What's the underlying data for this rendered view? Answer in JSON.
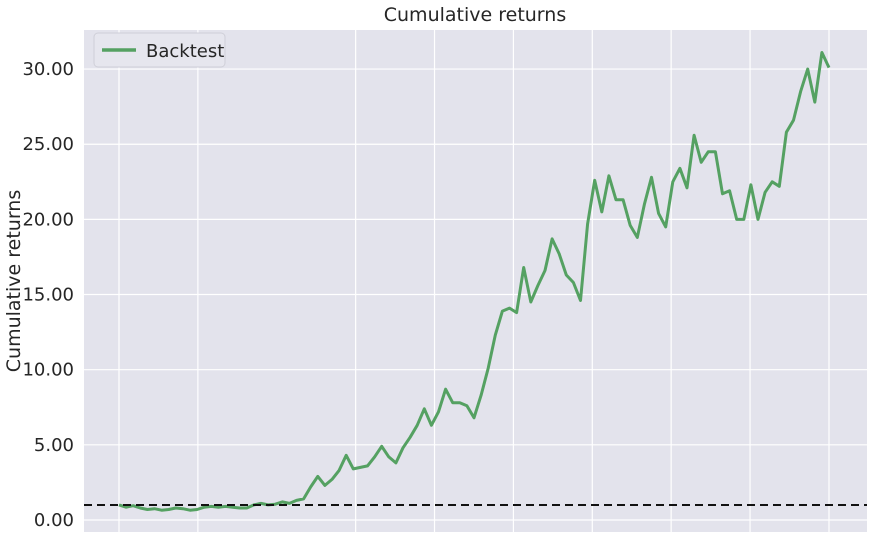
{
  "chart_data": {
    "type": "line",
    "title": "Cumulative returns",
    "xlabel": "",
    "ylabel": "Cumulative returns",
    "ylim": [
      -0.8,
      32.6
    ],
    "yticks": [
      0,
      5,
      10,
      15,
      20,
      25,
      30
    ],
    "ytick_labels": [
      "0.00",
      "5.00",
      "10.00",
      "15.00",
      "20.00",
      "25.00",
      "30.00"
    ],
    "xlim": [
      0,
      100
    ],
    "xgrid": [
      0,
      11.11,
      33.33,
      44.44,
      55.55,
      66.66,
      77.77,
      88.88,
      100
    ],
    "x_tick_labels_visible": false,
    "grid": true,
    "background": "#e3e3ec",
    "legend": {
      "location": "top-left",
      "entries": [
        "Backtest"
      ]
    },
    "reference_line": {
      "y": 1.0,
      "style": "dashed",
      "color": "#111111"
    },
    "series": [
      {
        "name": "Backtest",
        "color": "#55a162",
        "x": [
          0,
          1,
          2,
          3,
          4,
          5,
          6,
          7,
          8,
          9,
          10,
          11,
          12,
          13,
          14,
          15,
          16,
          17,
          18,
          19,
          20,
          21,
          22,
          23,
          24,
          25,
          26,
          27,
          28,
          29,
          30,
          31,
          32,
          33,
          34,
          35,
          36,
          37,
          38,
          39,
          40,
          41,
          42,
          43,
          44,
          45,
          46,
          47,
          48,
          49,
          50,
          51,
          52,
          53,
          54,
          55,
          56,
          57,
          58,
          59,
          60,
          61,
          62,
          63,
          64,
          65,
          66,
          67,
          68,
          69,
          70,
          71,
          72,
          73,
          74,
          75,
          76,
          77,
          78,
          79,
          80,
          81,
          82,
          83,
          84,
          85,
          86,
          87,
          88,
          89,
          90,
          91,
          92,
          93,
          94,
          95,
          96,
          97,
          98,
          99,
          100
        ],
        "values": [
          1.0,
          0.85,
          0.95,
          0.8,
          0.7,
          0.75,
          0.65,
          0.7,
          0.8,
          0.75,
          0.65,
          0.7,
          0.85,
          0.9,
          0.85,
          0.9,
          0.85,
          0.8,
          0.8,
          1.0,
          1.1,
          1.0,
          1.05,
          1.2,
          1.1,
          1.3,
          1.4,
          2.2,
          2.9,
          2.3,
          2.7,
          3.3,
          4.3,
          3.4,
          3.5,
          3.6,
          4.2,
          4.9,
          4.2,
          3.8,
          4.8,
          5.5,
          6.3,
          7.4,
          6.3,
          7.2,
          8.7,
          7.8,
          7.8,
          7.6,
          6.8,
          8.3,
          10.1,
          12.3,
          13.9,
          14.1,
          13.8,
          16.8,
          14.5,
          15.6,
          16.6,
          18.7,
          17.7,
          16.3,
          15.8,
          14.6,
          19.7,
          22.6,
          20.5,
          22.9,
          21.3,
          21.3,
          19.6,
          18.8,
          21.0,
          22.8,
          20.4,
          19.5,
          22.5,
          23.4,
          22.1,
          25.6,
          23.8,
          24.5,
          24.5,
          21.7,
          21.9,
          20.0,
          20.0,
          22.3,
          20.0,
          21.8,
          22.5,
          22.2,
          25.8,
          26.6,
          28.5,
          30.0,
          27.8,
          31.1,
          30.1
        ]
      }
    ]
  }
}
